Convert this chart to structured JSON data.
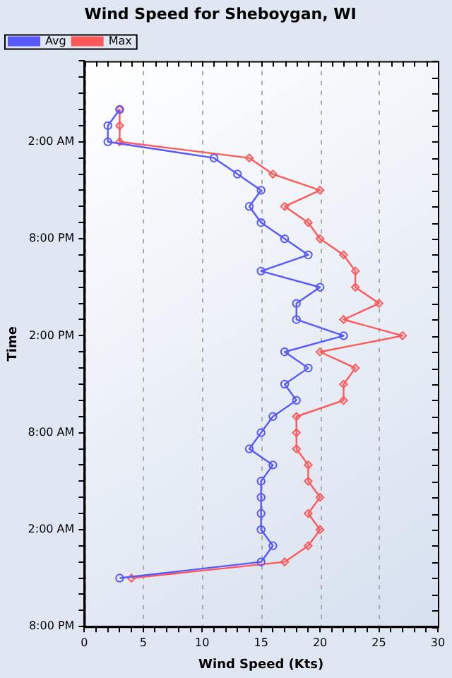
{
  "chart_data": {
    "type": "line",
    "orientation": "horizontal",
    "title": "Wind Speed for Sheboygan, WI",
    "xlabel": "Wind Speed (Kts)",
    "ylabel": "Time",
    "categories": [
      null,
      null,
      null,
      null,
      null,
      "2:00 AM",
      null,
      null,
      null,
      null,
      null,
      "8:00 PM",
      null,
      null,
      null,
      null,
      null,
      "2:00 PM",
      null,
      null,
      null,
      null,
      null,
      "8:00 AM",
      null,
      null,
      null,
      null,
      null,
      "2:00 AM",
      null,
      null,
      null,
      null,
      null,
      "8:00 PM"
    ],
    "series": [
      {
        "name": "Avg",
        "color": "#5858ff",
        "marker": "circle",
        "values": [
          null,
          null,
          null,
          3,
          2,
          2,
          11,
          13,
          15,
          14,
          15,
          17,
          19,
          15,
          20,
          18,
          18,
          22,
          17,
          19,
          17,
          18,
          16,
          15,
          14,
          16,
          15,
          15,
          15,
          15,
          16,
          15,
          3,
          null,
          null,
          null
        ]
      },
      {
        "name": "Max",
        "color": "#ff5858",
        "marker": "diamond",
        "values": [
          null,
          null,
          null,
          3,
          3,
          3,
          14,
          16,
          20,
          17,
          19,
          20,
          22,
          23,
          23,
          25,
          22,
          27,
          20,
          23,
          22,
          22,
          18,
          18,
          18,
          19,
          19,
          20,
          19,
          20,
          19,
          17,
          4,
          null,
          null,
          null
        ]
      }
    ],
    "xlim": [
      0,
      30
    ],
    "xticks": [
      0,
      {
        "value": 1,
        "label": null
      },
      {
        "value": 2,
        "label": null
      },
      {
        "value": 3,
        "label": null
      },
      {
        "value": 4,
        "label": null
      },
      5,
      {
        "value": 6,
        "label": null
      },
      {
        "value": 7,
        "label": null
      },
      {
        "value": 8,
        "label": null
      },
      {
        "value": 9,
        "label": null
      },
      10,
      {
        "value": 11,
        "label": null
      },
      {
        "value": 12,
        "label": null
      },
      {
        "value": 13,
        "label": null
      },
      {
        "value": 14,
        "label": null
      },
      15,
      {
        "value": 16,
        "label": null
      },
      {
        "value": 17,
        "label": null
      },
      {
        "value": 18,
        "label": null
      },
      {
        "value": 19,
        "label": null
      },
      20,
      {
        "value": 21,
        "label": null
      },
      {
        "value": 22,
        "label": null
      },
      {
        "value": 23,
        "label": null
      },
      {
        "value": 24,
        "label": null
      },
      25,
      {
        "value": 26,
        "label": null
      },
      {
        "value": 27,
        "label": null
      },
      {
        "value": 28,
        "label": null
      },
      {
        "value": 29,
        "label": null
      },
      30
    ],
    "grid": "x",
    "legend": "top left",
    "line_style": "solid"
  }
}
